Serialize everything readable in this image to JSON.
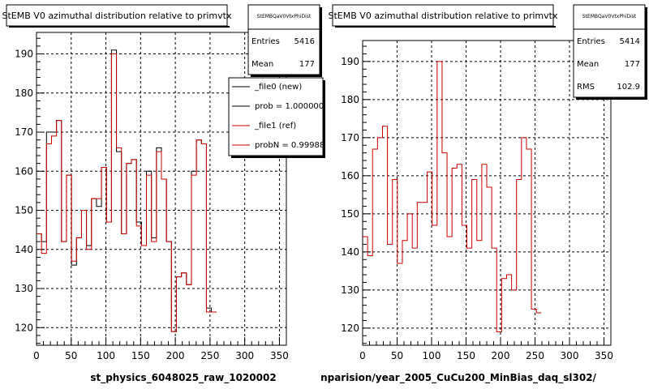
{
  "chart_data": [
    {
      "type": "line",
      "title": "StEMB V0 azimuthal distribution relative to primvtx",
      "xlabel": "st_physics_6048025_raw_1020002",
      "xlim": [
        0,
        360
      ],
      "ylim": [
        115.5,
        195.5
      ],
      "xticks": [
        "0",
        "50",
        "100",
        "150",
        "200",
        "250",
        "300",
        "350"
      ],
      "yticks": [
        "120",
        "130",
        "140",
        "150",
        "160",
        "170",
        "180",
        "190"
      ],
      "grid": true,
      "stats": {
        "name": "StEMBQaV0VtxPhiDist",
        "rows": [
          {
            "label": "Entries",
            "value": "5416"
          },
          {
            "label": "Mean",
            "value": "177"
          }
        ]
      },
      "legend": {
        "placement": "top-right",
        "entries": [
          {
            "label": "_file0 (new)",
            "color": "#000000"
          },
          {
            "label": "prob = 1.000000",
            "color": "#000000"
          },
          {
            "label": "_file1 (ref)",
            "color": "#cc0000"
          },
          {
            "label": "probN = 0.99988",
            "color": "#cc0000"
          }
        ]
      },
      "bin_width": 7.2,
      "x_start": 0,
      "series": [
        {
          "color": "#000000",
          "values": [
            144,
            142,
            170,
            170,
            173,
            142,
            159,
            136,
            143,
            150,
            141,
            153,
            151,
            161,
            147,
            191,
            165,
            144,
            162,
            163,
            147,
            141,
            160,
            143,
            166,
            158,
            142,
            119,
            133,
            134,
            131,
            160,
            168,
            167,
            125,
            124
          ]
        },
        {
          "color": "#cc0000",
          "values": [
            144,
            139,
            167,
            169,
            173,
            142,
            159,
            137,
            143,
            150,
            140,
            153,
            153,
            161,
            147,
            190,
            166,
            144,
            162,
            163,
            146,
            141,
            159,
            142,
            165,
            158,
            142,
            119,
            133,
            134,
            131,
            159,
            168,
            167,
            124,
            124
          ]
        }
      ]
    },
    {
      "type": "line",
      "title": "StEMB V0 azimuthal distribution relative to primvtx",
      "xlabel": "nparision/year_2005_CuCu200_MinBias_daq_sl302/",
      "xlim": [
        0,
        360
      ],
      "ylim": [
        115.5,
        195.5
      ],
      "xticks": [
        "0",
        "50",
        "100",
        "150",
        "200",
        "250",
        "300",
        "350"
      ],
      "yticks": [
        "120",
        "130",
        "140",
        "150",
        "160",
        "170",
        "180",
        "190"
      ],
      "grid": true,
      "stats": {
        "name": "StEMBQaV0VtxPhiDist",
        "rows": [
          {
            "label": "Entries",
            "value": "5414"
          },
          {
            "label": "Mean",
            "value": "177"
          },
          {
            "label": "RMS",
            "value": "102.9"
          }
        ]
      },
      "bin_width": 7.2,
      "x_start": 0,
      "series": [
        {
          "color": "#cc0000",
          "values": [
            144,
            139,
            167,
            170,
            173,
            142,
            159,
            137,
            143,
            150,
            141,
            153,
            153,
            161,
            147,
            190,
            166,
            144,
            162,
            163,
            147,
            141,
            159,
            143,
            163,
            157,
            141,
            119,
            133,
            134,
            130,
            159,
            170,
            167,
            125,
            124
          ]
        }
      ]
    }
  ]
}
